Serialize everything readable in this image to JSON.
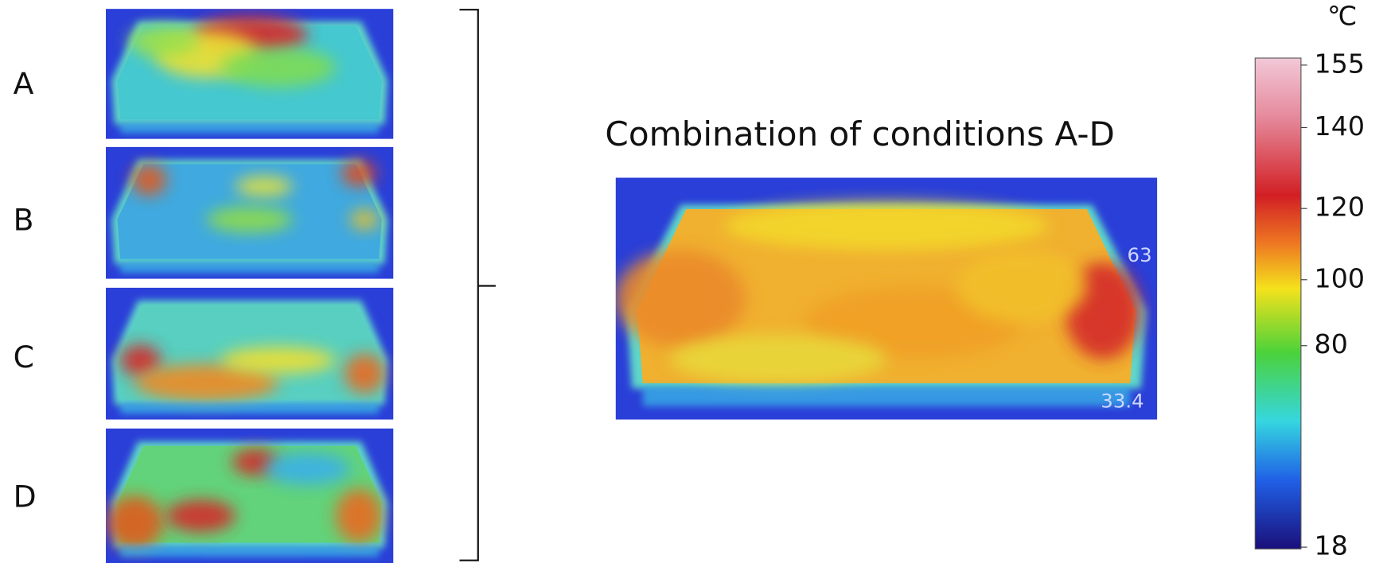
{
  "labels": [
    "A",
    "B",
    "C",
    "D"
  ],
  "title": "Combination of conditions A-D",
  "combined_annotations": [
    "63",
    "33.4"
  ],
  "colorbar": {
    "unit": "℃",
    "ticks": [
      155,
      140,
      120,
      100,
      80,
      18
    ]
  }
}
